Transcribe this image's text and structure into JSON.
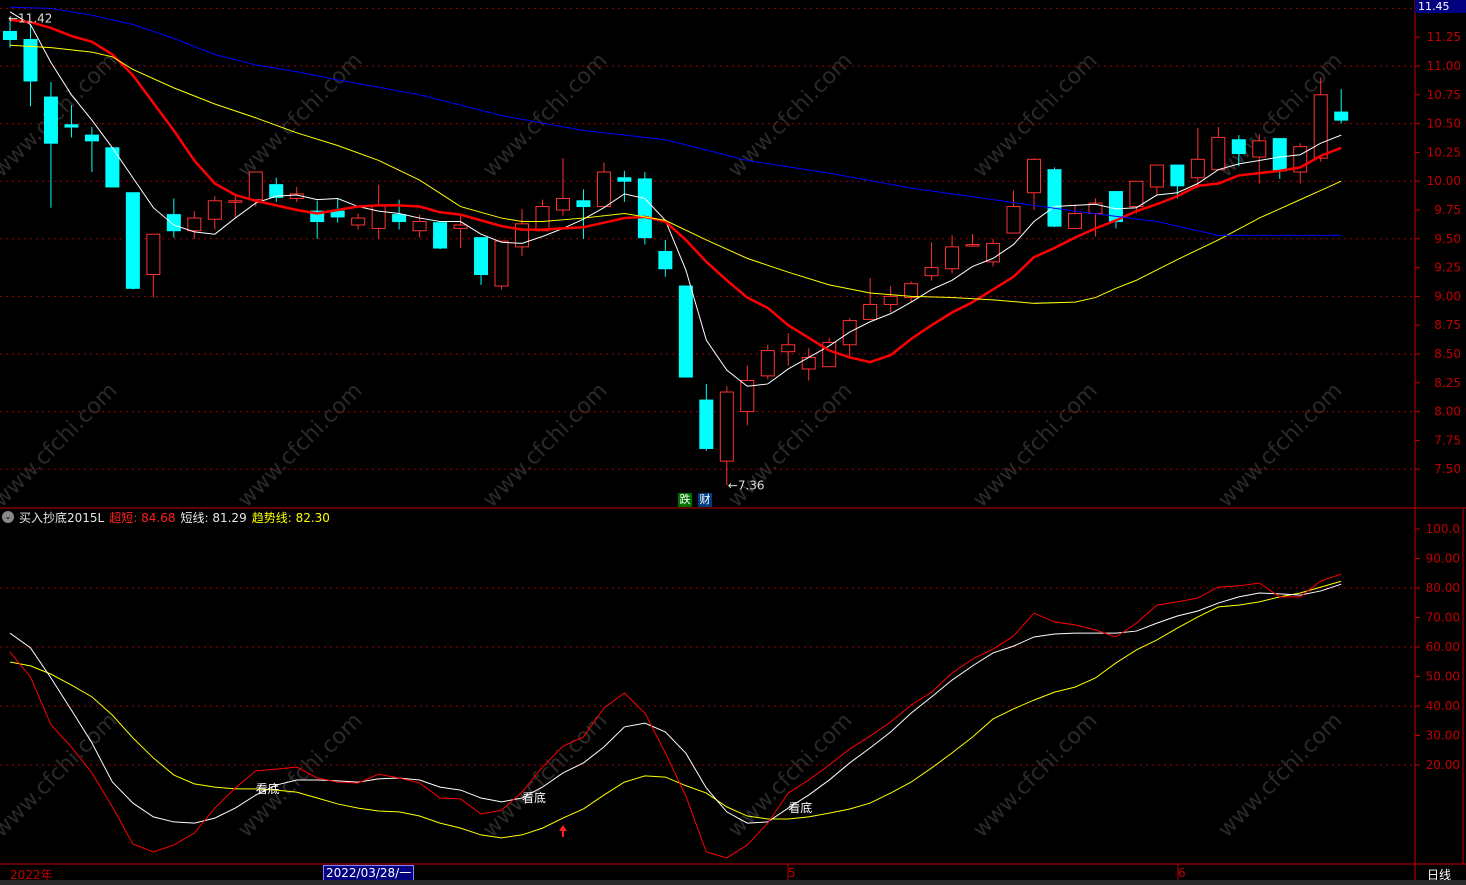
{
  "watermark": "www.cfchi.com",
  "colors": {
    "up": "#ff3232",
    "down": "#00ffff",
    "grid": "#a00000",
    "axis": "#c00000",
    "ma_white": "#ffffff",
    "ma_red": "#ff0000",
    "ma_yellow": "#ffff00",
    "ma_blue": "#0000ff"
  },
  "price_axis": {
    "current_price": "11.45",
    "ticks": [
      "11.25",
      "11.00",
      "10.75",
      "10.50",
      "10.25",
      "10.00",
      "9.75",
      "9.50",
      "9.25",
      "9.00",
      "8.75",
      "8.50",
      "8.25",
      "8.00",
      "7.75",
      "7.50"
    ]
  },
  "annotations": {
    "high_label": "11.42",
    "low_label": "7.36",
    "tag_die": "跌",
    "tag_cai": "财",
    "signal_text": "看底"
  },
  "indicator": {
    "name": "买入抄底2015L",
    "s1_label": "超短:",
    "s1_value": "84.68",
    "s2_label": "短线:",
    "s2_value": "81.29",
    "s3_label": "趋势线:",
    "s3_value": "82.30",
    "ticks": [
      "100.0",
      "90.00",
      "80.00",
      "70.00",
      "60.00",
      "50.00",
      "40.00",
      "30.00",
      "20.00"
    ]
  },
  "x_axis": {
    "year_label": "2022年",
    "selected_date": "2022/03/28/一",
    "month_5": "5",
    "month_6": "6",
    "period": "日线"
  },
  "chart_data": [
    {
      "type": "candlestick",
      "ylim": [
        7.25,
        11.5
      ],
      "grid": true,
      "candles_ohlc": [
        [
          11.3,
          11.42,
          11.16,
          11.23
        ],
        [
          11.23,
          11.36,
          10.65,
          10.87
        ],
        [
          10.73,
          10.86,
          9.77,
          10.33
        ],
        [
          10.49,
          10.66,
          10.38,
          10.47
        ],
        [
          10.4,
          10.47,
          10.08,
          10.35
        ],
        [
          10.29,
          10.29,
          9.95,
          9.95
        ],
        [
          9.9,
          9.9,
          9.06,
          9.07
        ],
        [
          9.19,
          9.54,
          8.99,
          9.54
        ],
        [
          9.71,
          9.85,
          9.51,
          9.57
        ],
        [
          9.57,
          9.74,
          9.5,
          9.68
        ],
        [
          9.67,
          9.87,
          9.58,
          9.83
        ],
        [
          9.82,
          9.89,
          9.68,
          9.83
        ],
        [
          9.84,
          10.08,
          9.78,
          10.08
        ],
        [
          9.97,
          10.03,
          9.82,
          9.86
        ],
        [
          9.85,
          9.95,
          9.82,
          9.89
        ],
        [
          9.74,
          9.83,
          9.5,
          9.65
        ],
        [
          9.74,
          9.85,
          9.64,
          9.69
        ],
        [
          9.62,
          9.72,
          9.58,
          9.68
        ],
        [
          9.59,
          9.97,
          9.5,
          9.79
        ],
        [
          9.71,
          9.84,
          9.58,
          9.65
        ],
        [
          9.57,
          9.71,
          9.51,
          9.65
        ],
        [
          9.64,
          9.64,
          9.41,
          9.42
        ],
        [
          9.59,
          9.72,
          9.42,
          9.62
        ],
        [
          9.51,
          9.51,
          9.1,
          9.19
        ],
        [
          9.09,
          9.48,
          9.06,
          9.48
        ],
        [
          9.43,
          9.76,
          9.35,
          9.63
        ],
        [
          9.57,
          9.84,
          9.57,
          9.78
        ],
        [
          9.75,
          10.2,
          9.7,
          9.85
        ],
        [
          9.83,
          9.93,
          9.5,
          9.78
        ],
        [
          9.78,
          10.16,
          9.78,
          10.08
        ],
        [
          10.03,
          10.09,
          9.82,
          10.0
        ],
        [
          10.02,
          10.08,
          9.45,
          9.51
        ],
        [
          9.39,
          9.49,
          9.17,
          9.24
        ],
        [
          9.09,
          9.09,
          8.3,
          8.3
        ],
        [
          8.1,
          8.24,
          7.66,
          7.68
        ],
        [
          7.57,
          8.22,
          7.36,
          8.17
        ],
        [
          8.0,
          8.4,
          7.88,
          8.27
        ],
        [
          8.31,
          8.58,
          8.28,
          8.53
        ],
        [
          8.52,
          8.68,
          8.4,
          8.58
        ],
        [
          8.37,
          8.55,
          8.27,
          8.47
        ],
        [
          8.39,
          8.64,
          8.39,
          8.6
        ],
        [
          8.58,
          8.81,
          8.47,
          8.79
        ],
        [
          8.8,
          9.16,
          8.8,
          8.93
        ],
        [
          8.93,
          9.09,
          8.86,
          9.0
        ],
        [
          8.99,
          9.13,
          8.95,
          9.11
        ],
        [
          9.18,
          9.47,
          9.14,
          9.25
        ],
        [
          9.24,
          9.53,
          9.2,
          9.43
        ],
        [
          9.44,
          9.54,
          9.43,
          9.45
        ],
        [
          9.3,
          9.5,
          9.26,
          9.46
        ],
        [
          9.55,
          9.92,
          9.55,
          9.78
        ],
        [
          9.9,
          10.2,
          9.75,
          10.19
        ],
        [
          10.1,
          10.12,
          9.6,
          9.61
        ],
        [
          9.59,
          9.8,
          9.59,
          9.72
        ],
        [
          9.72,
          9.85,
          9.52,
          9.81
        ],
        [
          9.91,
          9.91,
          9.59,
          9.65
        ],
        [
          9.78,
          10.0,
          9.72,
          10.0
        ],
        [
          9.95,
          10.14,
          9.88,
          10.14
        ],
        [
          10.14,
          10.14,
          9.85,
          9.96
        ],
        [
          10.03,
          10.46,
          9.94,
          10.19
        ],
        [
          10.1,
          10.47,
          10.1,
          10.38
        ],
        [
          10.36,
          10.4,
          10.13,
          10.24
        ],
        [
          10.21,
          10.41,
          9.98,
          10.35
        ],
        [
          10.37,
          10.37,
          10.02,
          10.09
        ],
        [
          10.08,
          10.33,
          9.98,
          10.3
        ],
        [
          10.2,
          10.9,
          10.17,
          10.75
        ],
        [
          10.6,
          10.8,
          10.5,
          10.53
        ]
      ],
      "ma_lines": [
        {
          "color": "#ffffff",
          "values": [
            11.47,
            11.36,
            11.03,
            10.75,
            10.53,
            10.29,
            10.03,
            9.77,
            9.62,
            9.56,
            9.54,
            9.68,
            9.81,
            9.87,
            9.88,
            9.84,
            9.85,
            9.78,
            9.74,
            9.72,
            9.68,
            9.65,
            9.65,
            9.54,
            9.47,
            9.46,
            9.52,
            9.59,
            9.67,
            9.77,
            9.89,
            9.85,
            9.66,
            9.23,
            8.62,
            8.36,
            8.22,
            8.24,
            8.37,
            8.47,
            8.57,
            8.69,
            8.78,
            8.85,
            8.95,
            9.06,
            9.14,
            9.26,
            9.33,
            9.45,
            9.65,
            9.78,
            9.79,
            9.8,
            9.76,
            9.77,
            9.88,
            9.9,
            9.98,
            10.1,
            10.15,
            10.18,
            10.21,
            10.23,
            10.33,
            10.4
          ]
        },
        {
          "color": "#ff0000",
          "values": [
            11.4,
            11.38,
            11.33,
            11.26,
            11.21,
            11.1,
            10.92,
            10.68,
            10.44,
            10.18,
            9.98,
            9.88,
            9.83,
            9.79,
            9.75,
            9.72,
            9.75,
            9.78,
            9.79,
            9.79,
            9.78,
            9.73,
            9.71,
            9.66,
            9.61,
            9.58,
            9.58,
            9.59,
            9.6,
            9.64,
            9.68,
            9.69,
            9.65,
            9.49,
            9.3,
            9.14,
            8.99,
            8.9,
            8.75,
            8.64,
            8.53,
            8.47,
            8.43,
            8.49,
            8.63,
            8.75,
            8.86,
            8.95,
            9.06,
            9.17,
            9.34,
            9.42,
            9.51,
            9.59,
            9.66,
            9.74,
            9.8,
            9.87,
            9.96,
            9.98,
            10.05,
            10.07,
            10.09,
            10.12,
            10.22,
            10.29
          ]
        },
        {
          "color": "#ffff00",
          "points": [
            [
              0,
              11.18
            ],
            [
              2,
              11.16
            ],
            [
              4,
              11.12
            ],
            [
              5,
              11.08
            ],
            [
              6,
              10.97
            ],
            [
              8,
              10.81
            ],
            [
              10,
              10.67
            ],
            [
              12,
              10.55
            ],
            [
              14,
              10.42
            ],
            [
              16,
              10.31
            ],
            [
              18,
              10.18
            ],
            [
              20,
              10.01
            ],
            [
              22,
              9.78
            ],
            [
              24,
              9.68
            ],
            [
              25,
              9.65
            ],
            [
              26,
              9.65
            ],
            [
              28,
              9.68
            ],
            [
              30,
              9.72
            ],
            [
              32,
              9.66
            ],
            [
              34,
              9.49
            ],
            [
              36,
              9.33
            ],
            [
              38,
              9.21
            ],
            [
              40,
              9.1
            ],
            [
              42,
              9.03
            ],
            [
              44,
              9.0
            ],
            [
              46,
              8.99
            ],
            [
              48,
              8.97
            ],
            [
              50,
              8.94
            ],
            [
              52,
              8.95
            ],
            [
              53,
              8.99
            ],
            [
              54,
              9.07
            ],
            [
              55,
              9.14
            ],
            [
              57,
              9.32
            ],
            [
              59,
              9.49
            ],
            [
              61,
              9.68
            ],
            [
              63,
              9.84
            ],
            [
              64,
              9.92
            ],
            [
              65,
              10.0
            ]
          ]
        },
        {
          "color": "#0000ff",
          "points": [
            [
              0,
              11.51
            ],
            [
              2,
              11.5
            ],
            [
              4,
              11.44
            ],
            [
              6,
              11.36
            ],
            [
              8,
              11.24
            ],
            [
              10,
              11.1
            ],
            [
              12,
              11.01
            ],
            [
              14,
              10.95
            ],
            [
              16,
              10.88
            ],
            [
              20,
              10.75
            ],
            [
              24,
              10.57
            ],
            [
              28,
              10.44
            ],
            [
              32,
              10.36
            ],
            [
              36,
              10.18
            ],
            [
              40,
              10.07
            ],
            [
              44,
              9.94
            ],
            [
              48,
              9.84
            ],
            [
              52,
              9.74
            ],
            [
              56,
              9.65
            ],
            [
              59,
              9.53
            ],
            [
              65,
              9.53
            ]
          ]
        }
      ]
    },
    {
      "type": "line",
      "title": "买入抄底2015L",
      "ylim": [
        -13,
        104
      ],
      "grid": true,
      "series": [
        {
          "name": "超短",
          "color": "#ff0000",
          "values": [
            58.3,
            49.8,
            33.6,
            26.1,
            17.3,
            5.8,
            -6.8,
            -9.5,
            -7.1,
            -3.1,
            5.4,
            12.2,
            18.0,
            18.6,
            19.3,
            15.6,
            14.2,
            13.9,
            16.9,
            15.6,
            13.9,
            8.8,
            8.5,
            3.4,
            4.7,
            10.8,
            19.3,
            26.4,
            29.5,
            39.3,
            44.4,
            37.6,
            24.1,
            9.5,
            -9.5,
            -11.5,
            -7.1,
            0.3,
            10.5,
            14.9,
            20.0,
            25.4,
            29.8,
            34.6,
            40.3,
            44.7,
            51.2,
            55.9,
            59.3,
            63.7,
            71.5,
            68.5,
            67.5,
            65.8,
            63.4,
            68.1,
            74.2,
            75.3,
            76.6,
            80.3,
            80.7,
            81.7,
            77.0,
            77.0,
            82.4,
            84.68
          ]
        },
        {
          "name": "短线",
          "color": "#ffffff",
          "values": [
            64.7,
            59.7,
            49.5,
            38.6,
            27.5,
            14.2,
            7.1,
            2.4,
            0.7,
            0.3,
            2.0,
            5.4,
            9.8,
            13.2,
            14.9,
            14.9,
            14.6,
            14.2,
            15.3,
            15.6,
            14.9,
            12.5,
            11.5,
            8.8,
            7.5,
            8.8,
            12.5,
            17.3,
            20.7,
            26.1,
            32.9,
            34.2,
            31.2,
            24.0,
            12.2,
            4.1,
            0.3,
            0.7,
            5.4,
            9.8,
            14.9,
            20.7,
            25.8,
            31.2,
            37.6,
            43.1,
            48.8,
            53.6,
            58.0,
            60.3,
            63.4,
            64.4,
            64.7,
            64.7,
            64.7,
            65.4,
            68.1,
            70.5,
            72.2,
            74.9,
            77.0,
            78.3,
            78.0,
            77.6,
            79.0,
            81.29
          ]
        },
        {
          "name": "趋势线",
          "color": "#ffff00",
          "values": [
            54.9,
            53.6,
            50.8,
            47.1,
            43.1,
            36.9,
            29.2,
            22.4,
            16.6,
            13.6,
            12.5,
            11.9,
            11.9,
            11.5,
            10.8,
            8.8,
            6.8,
            5.4,
            4.4,
            4.1,
            2.7,
            0.3,
            -1.4,
            -3.7,
            -4.7,
            -3.7,
            -1.4,
            2.0,
            5.1,
            9.8,
            14.2,
            16.3,
            15.9,
            13.0,
            10.5,
            5.8,
            2.7,
            1.7,
            1.7,
            2.4,
            3.7,
            5.1,
            7.1,
            10.5,
            14.2,
            19.0,
            24.1,
            29.5,
            35.6,
            39.0,
            42.0,
            44.7,
            46.4,
            49.5,
            54.6,
            59.0,
            62.4,
            66.4,
            70.2,
            73.6,
            74.2,
            75.3,
            77.0,
            78.3,
            80.3,
            82.3
          ]
        }
      ],
      "signals": [
        {
          "index": 12,
          "text": "看底"
        },
        {
          "index": 25,
          "text": "看底"
        },
        {
          "index": 38,
          "text": "看底"
        }
      ],
      "arrow_up_index": 27
    }
  ]
}
